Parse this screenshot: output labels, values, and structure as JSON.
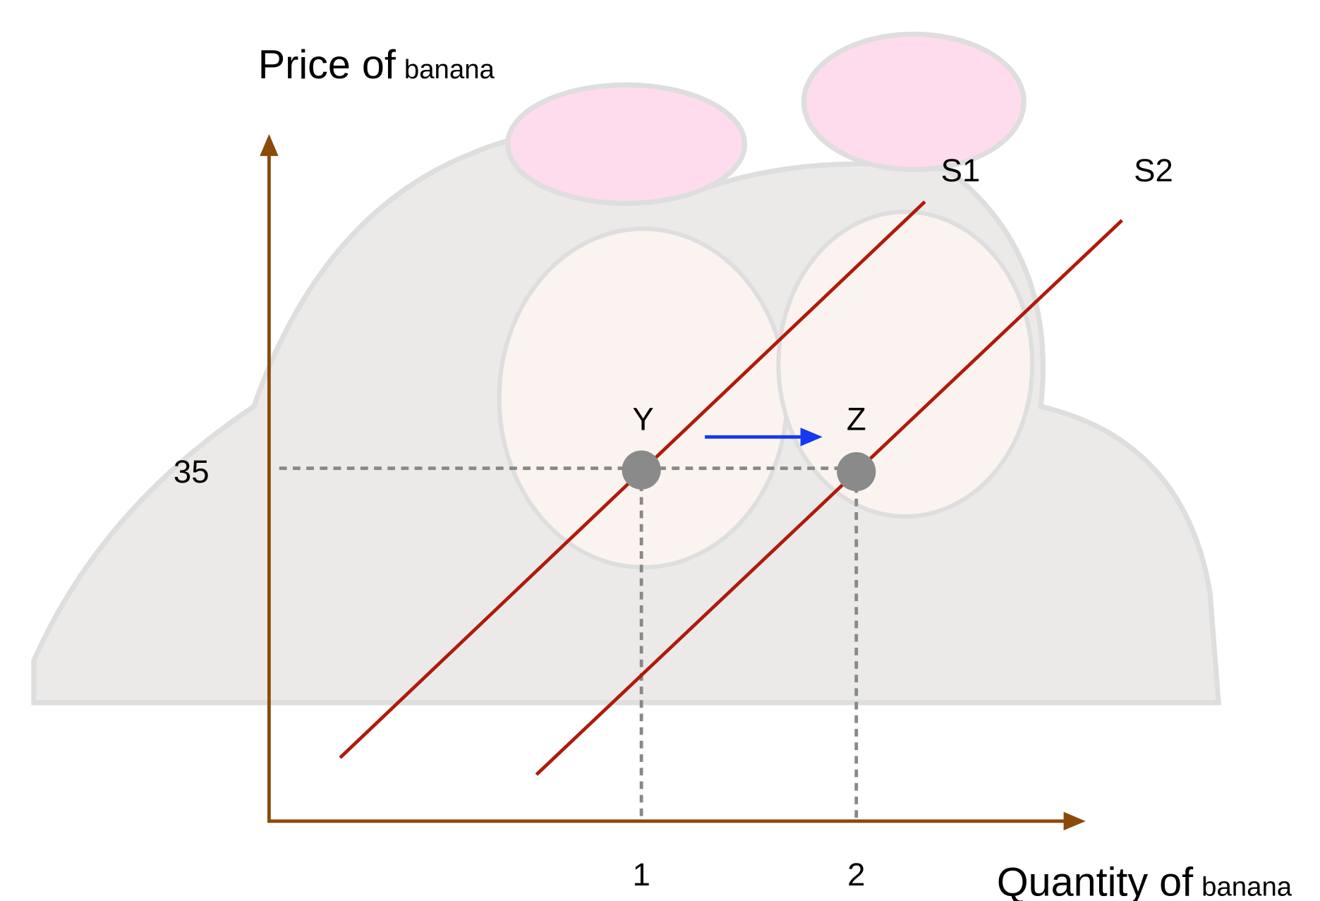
{
  "diagram": {
    "y_axis_label": {
      "main": "Price of",
      "unit": "banana"
    },
    "x_axis_label": {
      "main": "Quantity of",
      "unit": "banana"
    },
    "curves": [
      {
        "label": "S1"
      },
      {
        "label": "S2"
      }
    ],
    "points": [
      {
        "label": "Y"
      },
      {
        "label": "Z"
      }
    ],
    "y_tick": "35",
    "x_ticks": [
      "1",
      "2"
    ]
  }
}
